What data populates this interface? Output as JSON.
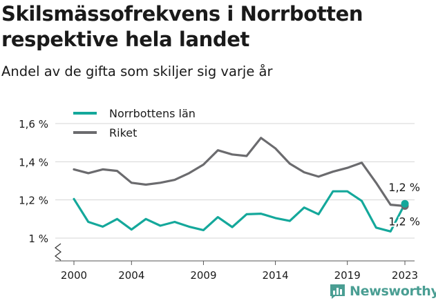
{
  "header": {
    "title": "Skilsmässofrekvens i Norrbotten respektive hela landet",
    "subtitle": "Andel av de gifta som skiljer sig varje år"
  },
  "brand": {
    "name": "Newsworthy",
    "color": "#4a9e93",
    "icon": "newsworthy-logo-icon"
  },
  "chart_data": {
    "type": "line",
    "x": [
      2000,
      2001,
      2002,
      2003,
      2004,
      2005,
      2006,
      2007,
      2008,
      2009,
      2010,
      2011,
      2012,
      2013,
      2014,
      2015,
      2016,
      2017,
      2018,
      2019,
      2020,
      2021,
      2022,
      2023
    ],
    "series": [
      {
        "name": "Norrbottens län",
        "color": "#14a89b",
        "values": [
          1.205,
          1.085,
          1.06,
          1.1,
          1.045,
          1.1,
          1.065,
          1.085,
          1.06,
          1.042,
          1.11,
          1.058,
          1.125,
          1.128,
          1.105,
          1.09,
          1.16,
          1.125,
          1.245,
          1.245,
          1.195,
          1.055,
          1.035,
          1.18
        ],
        "end_label": "1,2 %"
      },
      {
        "name": "Riket",
        "color": "#6b6b6e",
        "values": [
          1.36,
          1.34,
          1.36,
          1.352,
          1.29,
          1.28,
          1.29,
          1.305,
          1.34,
          1.385,
          1.46,
          1.438,
          1.43,
          1.525,
          1.47,
          1.39,
          1.345,
          1.322,
          1.348,
          1.368,
          1.395,
          1.29,
          1.175,
          1.168
        ],
        "end_label": "1,2 %"
      }
    ],
    "x_ticks": [
      2000,
      2004,
      2009,
      2014,
      2019,
      2023
    ],
    "y_ticks": [
      {
        "value": 1.0,
        "label": "1 %"
      },
      {
        "value": 1.2,
        "label": "1,2 %"
      },
      {
        "value": 1.4,
        "label": "1,4 %"
      },
      {
        "value": 1.6,
        "label": "1,6 %"
      }
    ],
    "xlim": [
      2000,
      2023
    ],
    "ylim": [
      1.0,
      1.6
    ],
    "axis_break": true,
    "grid": true,
    "legend_position": "top-left"
  }
}
